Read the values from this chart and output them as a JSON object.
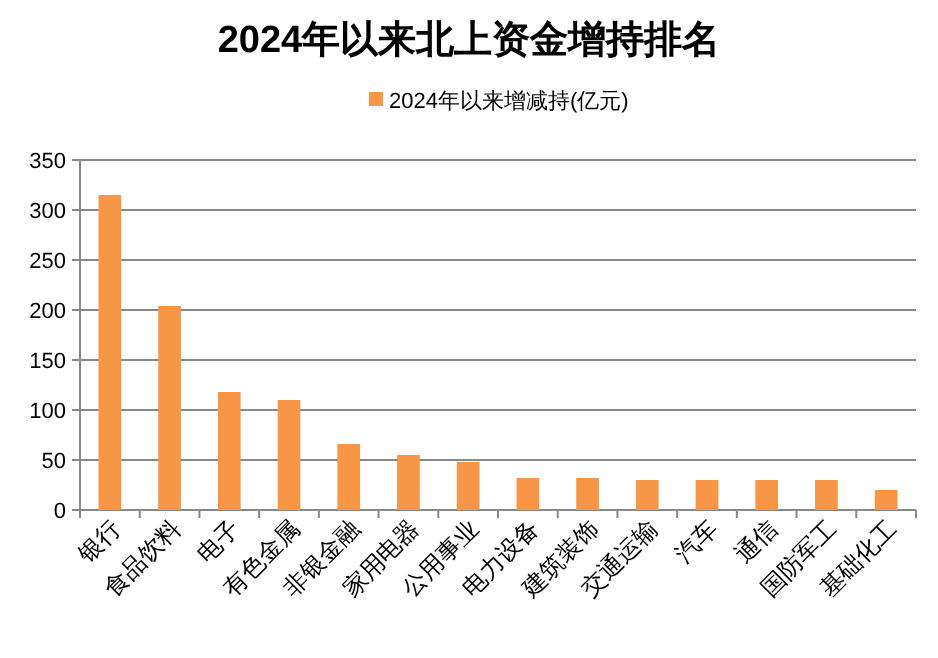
{
  "chart_data": {
    "type": "bar",
    "title": "2024年以来北上资金增持排名",
    "categories": [
      "银行",
      "食品饮料",
      "电子",
      "有色金属",
      "非银金融",
      "家用电器",
      "公用事业",
      "电力设备",
      "建筑装饰",
      "交通运输",
      "汽车",
      "通信",
      "国防军工",
      "基础化工"
    ],
    "series": [
      {
        "name": "2024年以来增减持(亿元)",
        "color": "#f79646",
        "values": [
          315,
          204,
          118,
          110,
          66,
          55,
          48,
          32,
          32,
          30,
          30,
          30,
          30,
          20
        ]
      }
    ],
    "ylim": [
      0,
      350
    ],
    "yticks": [
      0,
      50,
      100,
      150,
      200,
      250,
      300,
      350
    ],
    "grid": "y",
    "legend": "top"
  }
}
